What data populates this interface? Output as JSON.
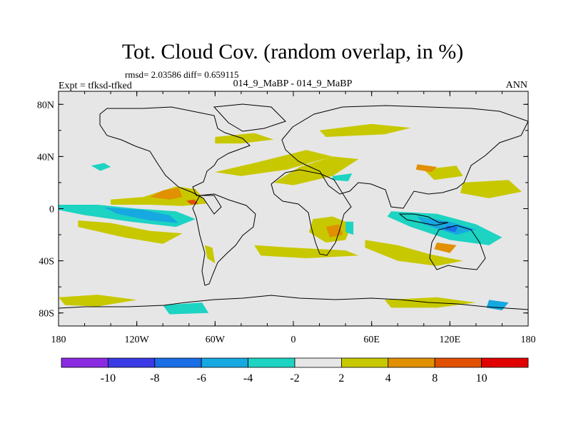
{
  "chart_data": {
    "type": "heatmap",
    "title": "Tot. Cloud Cov. (random overlap, in %)",
    "stats": "rmsd= 2.03586 diff= 0.659115",
    "experiment": "Expt = tfksd-tfked",
    "case": "014_9_MaBP - 014_9_MaBP",
    "season": "ANN",
    "xlim": [
      -180,
      180
    ],
    "ylim": [
      -90,
      90
    ],
    "x_ticks": [
      {
        "value": -180,
        "label": "180"
      },
      {
        "value": -120,
        "label": "120W"
      },
      {
        "value": -60,
        "label": "60W"
      },
      {
        "value": 0,
        "label": "0"
      },
      {
        "value": 60,
        "label": "60E"
      },
      {
        "value": 120,
        "label": "120E"
      },
      {
        "value": 180,
        "label": "180"
      }
    ],
    "y_ticks": [
      {
        "value": 80,
        "label": "80N"
      },
      {
        "value": 40,
        "label": "40N"
      },
      {
        "value": 0,
        "label": "0"
      },
      {
        "value": -40,
        "label": "40S"
      },
      {
        "value": -80,
        "label": "80S"
      }
    ],
    "colorbar": {
      "boundaries": [
        -10,
        -8,
        -6,
        -4,
        -2,
        2,
        4,
        8,
        10
      ],
      "colors": [
        "#8a2be2",
        "#3a3ae6",
        "#1a6ee6",
        "#16a8e0",
        "#1dd3c2",
        "#e6e6e6",
        "#c8c800",
        "#e09000",
        "#e05000",
        "#e00000"
      ],
      "labels": [
        "-10",
        "-8",
        "-6",
        "-4",
        "-2",
        "2",
        "4",
        "8",
        "10"
      ]
    },
    "regions": [
      {
        "name": "pacific-pos-subtropic",
        "color": "#c8c800",
        "value": 3,
        "pts": [
          [
            -140,
            7
          ],
          [
            -115,
            9
          ],
          [
            -90,
            17
          ],
          [
            -75,
            15
          ],
          [
            -66,
            4
          ],
          [
            -85,
            2
          ],
          [
            -110,
            3
          ],
          [
            -140,
            3
          ]
        ]
      },
      {
        "name": "pacific-pos-strong",
        "color": "#e09000",
        "value": 5,
        "pts": [
          [
            -110,
            9
          ],
          [
            -100,
            14
          ],
          [
            -88,
            16
          ],
          [
            -85,
            9
          ],
          [
            -95,
            7
          ]
        ]
      },
      {
        "name": "peru-pos-core",
        "color": "#e05000",
        "value": 9,
        "pts": [
          [
            -82,
            6
          ],
          [
            -76,
            7
          ],
          [
            -73,
            4
          ],
          [
            -78,
            3
          ]
        ]
      },
      {
        "name": "pacific-neg-band",
        "color": "#1dd3c2",
        "value": -3,
        "pts": [
          [
            -180,
            3
          ],
          [
            -150,
            3
          ],
          [
            -120,
            0
          ],
          [
            -90,
            -2
          ],
          [
            -75,
            -8
          ],
          [
            -90,
            -14
          ],
          [
            -125,
            -10
          ],
          [
            -160,
            -5
          ],
          [
            -180,
            -1
          ]
        ]
      },
      {
        "name": "pacific-neg-core",
        "color": "#16a8e0",
        "value": -5,
        "pts": [
          [
            -145,
            1
          ],
          [
            -115,
            -1
          ],
          [
            -95,
            -5
          ],
          [
            -88,
            -11
          ],
          [
            -110,
            -9
          ],
          [
            -135,
            -4
          ]
        ]
      },
      {
        "name": "south-pacific-pos",
        "color": "#c8c800",
        "value": 3,
        "pts": [
          [
            -165,
            -9
          ],
          [
            -140,
            -11
          ],
          [
            -110,
            -17
          ],
          [
            -85,
            -19
          ],
          [
            -100,
            -27
          ],
          [
            -130,
            -22
          ],
          [
            -165,
            -14
          ]
        ]
      },
      {
        "name": "n-atlantic-pos",
        "color": "#c8c800",
        "value": 3,
        "pts": [
          [
            -60,
            28
          ],
          [
            -30,
            35
          ],
          [
            10,
            45
          ],
          [
            30,
            40
          ],
          [
            -5,
            30
          ],
          [
            -40,
            25
          ]
        ]
      },
      {
        "name": "n-africa-pos",
        "color": "#c8c800",
        "value": 3,
        "pts": [
          [
            -15,
            20
          ],
          [
            5,
            32
          ],
          [
            30,
            40
          ],
          [
            50,
            38
          ],
          [
            30,
            25
          ],
          [
            0,
            18
          ]
        ]
      },
      {
        "name": "n-pacific-neg",
        "color": "#1dd3c2",
        "value": -3,
        "pts": [
          [
            -155,
            33
          ],
          [
            -145,
            35
          ],
          [
            -140,
            32
          ],
          [
            -148,
            29
          ]
        ]
      },
      {
        "name": "s-atlantic-pos",
        "color": "#c8c800",
        "value": 3,
        "pts": [
          [
            -30,
            -28
          ],
          [
            0,
            -30
          ],
          [
            40,
            -32
          ],
          [
            50,
            -36
          ],
          [
            10,
            -38
          ],
          [
            -25,
            -36
          ]
        ]
      },
      {
        "name": "argentina-pos",
        "color": "#c8c800",
        "value": 3,
        "pts": [
          [
            -68,
            -28
          ],
          [
            -62,
            -30
          ],
          [
            -60,
            -42
          ],
          [
            -66,
            -38
          ]
        ]
      },
      {
        "name": "africa-pos",
        "color": "#c8c800",
        "value": 3,
        "pts": [
          [
            15,
            -8
          ],
          [
            30,
            -6
          ],
          [
            45,
            -12
          ],
          [
            40,
            -24
          ],
          [
            25,
            -26
          ],
          [
            12,
            -18
          ]
        ]
      },
      {
        "name": "africa-pos-strong",
        "color": "#e09000",
        "value": 5,
        "pts": [
          [
            25,
            -14
          ],
          [
            35,
            -12
          ],
          [
            38,
            -20
          ],
          [
            28,
            -22
          ]
        ]
      },
      {
        "name": "africa-neg",
        "color": "#1dd3c2",
        "value": -3,
        "pts": [
          [
            40,
            -10
          ],
          [
            46,
            -10
          ],
          [
            46,
            -20
          ],
          [
            40,
            -18
          ]
        ]
      },
      {
        "name": "w-pacific-neg-band",
        "color": "#1dd3c2",
        "value": -3,
        "pts": [
          [
            75,
            -2
          ],
          [
            110,
            -4
          ],
          [
            140,
            -12
          ],
          [
            160,
            -22
          ],
          [
            150,
            -28
          ],
          [
            120,
            -24
          ],
          [
            90,
            -14
          ],
          [
            72,
            -6
          ]
        ]
      },
      {
        "name": "w-pacific-neg-core",
        "color": "#16a8e0",
        "value": -5,
        "pts": [
          [
            95,
            -6
          ],
          [
            120,
            -10
          ],
          [
            140,
            -16
          ],
          [
            125,
            -20
          ],
          [
            100,
            -12
          ]
        ]
      },
      {
        "name": "w-pacific-neg-peak",
        "color": "#1a6ee6",
        "value": -7,
        "pts": [
          [
            118,
            -13
          ],
          [
            126,
            -14
          ],
          [
            124,
            -18
          ],
          [
            116,
            -16
          ]
        ]
      },
      {
        "name": "indian-ocean-pos",
        "color": "#c8c800",
        "value": 3,
        "pts": [
          [
            55,
            -24
          ],
          [
            80,
            -28
          ],
          [
            105,
            -35
          ],
          [
            130,
            -40
          ],
          [
            110,
            -44
          ],
          [
            80,
            -40
          ],
          [
            55,
            -30
          ]
        ]
      },
      {
        "name": "australia-pos-strong",
        "color": "#e09000",
        "value": 5,
        "pts": [
          [
            110,
            -26
          ],
          [
            125,
            -28
          ],
          [
            120,
            -34
          ],
          [
            108,
            -31
          ]
        ]
      },
      {
        "name": "w-pacific-pos-north",
        "color": "#c8c800",
        "value": 3,
        "pts": [
          [
            130,
            20
          ],
          [
            165,
            22
          ],
          [
            175,
            13
          ],
          [
            150,
            8
          ],
          [
            128,
            12
          ]
        ]
      },
      {
        "name": "china-pos",
        "color": "#c8c800",
        "value": 3,
        "pts": [
          [
            100,
            30
          ],
          [
            125,
            33
          ],
          [
            130,
            25
          ],
          [
            108,
            22
          ]
        ]
      },
      {
        "name": "nw-pacific-pos-strong",
        "color": "#e09000",
        "value": 5,
        "pts": [
          [
            95,
            34
          ],
          [
            110,
            32
          ],
          [
            106,
            28
          ],
          [
            94,
            30
          ]
        ]
      },
      {
        "name": "mideast-neg",
        "color": "#1dd3c2",
        "value": -3,
        "pts": [
          [
            30,
            25
          ],
          [
            45,
            27
          ],
          [
            42,
            21
          ],
          [
            30,
            22
          ]
        ]
      },
      {
        "name": "arctic-pos",
        "color": "#c8c800",
        "value": 3,
        "pts": [
          [
            -60,
            55
          ],
          [
            -30,
            58
          ],
          [
            -15,
            53
          ],
          [
            -40,
            50
          ],
          [
            -60,
            50
          ]
        ]
      },
      {
        "name": "asia-pos-north",
        "color": "#c8c800",
        "value": 3,
        "pts": [
          [
            20,
            60
          ],
          [
            60,
            65
          ],
          [
            90,
            62
          ],
          [
            70,
            57
          ],
          [
            25,
            55
          ]
        ]
      },
      {
        "name": "antarctic-pos-1",
        "color": "#c8c800",
        "value": 3,
        "pts": [
          [
            -180,
            -68
          ],
          [
            -150,
            -66
          ],
          [
            -120,
            -70
          ],
          [
            -150,
            -75
          ],
          [
            -175,
            -74
          ]
        ]
      },
      {
        "name": "antarctic-neg-1",
        "color": "#1dd3c2",
        "value": -3,
        "pts": [
          [
            -100,
            -74
          ],
          [
            -70,
            -72
          ],
          [
            -65,
            -80
          ],
          [
            -95,
            -81
          ]
        ]
      },
      {
        "name": "antarctic-pos-2",
        "color": "#c8c800",
        "value": 3,
        "pts": [
          [
            70,
            -70
          ],
          [
            110,
            -68
          ],
          [
            140,
            -72
          ],
          [
            110,
            -76
          ],
          [
            75,
            -76
          ]
        ]
      },
      {
        "name": "antarctic-neg-2",
        "color": "#16a8e0",
        "value": -5,
        "pts": [
          [
            150,
            -70
          ],
          [
            165,
            -72
          ],
          [
            160,
            -78
          ],
          [
            148,
            -76
          ]
        ]
      }
    ]
  }
}
